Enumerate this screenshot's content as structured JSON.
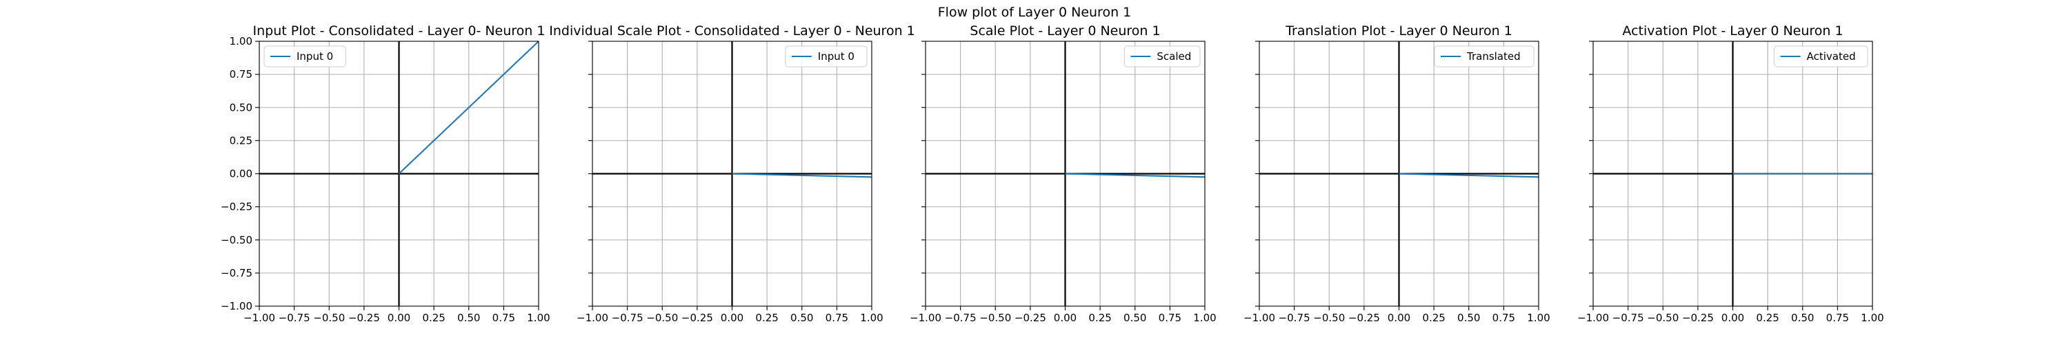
{
  "figure": {
    "title": "Flow plot of Layer 0 Neuron 1"
  },
  "chart_data": [
    {
      "type": "line",
      "title": "Input Plot - Consolidated - Layer 0- Neuron 1",
      "xlim": [
        -1.0,
        1.0
      ],
      "ylim": [
        -1.0,
        1.0
      ],
      "xticks": [
        "−1.00",
        "−0.75",
        "−0.50",
        "−0.25",
        "0.00",
        "0.25",
        "0.50",
        "0.75",
        "1.00"
      ],
      "yticks": [
        "−1.00",
        "−0.75",
        "−0.50",
        "−0.25",
        "0.00",
        "0.25",
        "0.50",
        "0.75",
        "1.00"
      ],
      "show_yticklabels": true,
      "grid": true,
      "legend_position": "upper-left",
      "series": [
        {
          "name": "Input 0",
          "color": "#1f77b4",
          "x": [
            0.0,
            1.0
          ],
          "y": [
            0.0,
            1.0
          ]
        }
      ]
    },
    {
      "type": "line",
      "title": "Individual Scale Plot - Consolidated - Layer 0 - Neuron 1",
      "xlim": [
        -1.0,
        1.0
      ],
      "ylim": [
        -1.0,
        1.0
      ],
      "xticks": [
        "−1.00",
        "−0.75",
        "−0.50",
        "−0.25",
        "0.00",
        "0.25",
        "0.50",
        "0.75",
        "1.00"
      ],
      "show_yticklabels": false,
      "grid": true,
      "legend_position": "upper-right",
      "series": [
        {
          "name": "Input 0",
          "color": "#1f77b4",
          "x": [
            0.0,
            1.0
          ],
          "y": [
            0.0,
            -0.025
          ]
        }
      ]
    },
    {
      "type": "line",
      "title": "Scale Plot - Layer 0 Neuron 1",
      "xlim": [
        -1.0,
        1.0
      ],
      "ylim": [
        -1.0,
        1.0
      ],
      "xticks": [
        "−1.00",
        "−0.75",
        "−0.50",
        "−0.25",
        "0.00",
        "0.25",
        "0.50",
        "0.75",
        "1.00"
      ],
      "show_yticklabels": false,
      "grid": true,
      "legend_position": "upper-right",
      "series": [
        {
          "name": "Scaled",
          "color": "#1f77b4",
          "x": [
            0.0,
            1.0
          ],
          "y": [
            0.0,
            -0.025
          ]
        }
      ]
    },
    {
      "type": "line",
      "title": "Translation Plot - Layer 0 Neuron 1",
      "xlim": [
        -1.0,
        1.0
      ],
      "ylim": [
        -1.0,
        1.0
      ],
      "xticks": [
        "−1.00",
        "−0.75",
        "−0.50",
        "−0.25",
        "0.00",
        "0.25",
        "0.50",
        "0.75",
        "1.00"
      ],
      "show_yticklabels": false,
      "grid": true,
      "legend_position": "upper-right",
      "series": [
        {
          "name": "Translated",
          "color": "#1f77b4",
          "x": [
            0.0,
            1.0
          ],
          "y": [
            0.0,
            -0.025
          ]
        }
      ]
    },
    {
      "type": "line",
      "title": "Activation Plot - Layer 0 Neuron 1",
      "xlim": [
        -1.0,
        1.0
      ],
      "ylim": [
        -1.0,
        1.0
      ],
      "xticks": [
        "−1.00",
        "−0.75",
        "−0.50",
        "−0.25",
        "0.00",
        "0.25",
        "0.50",
        "0.75",
        "1.00"
      ],
      "show_yticklabels": false,
      "grid": true,
      "legend_position": "upper-right",
      "series": [
        {
          "name": "Activated",
          "color": "#1f77b4",
          "x": [
            0.0,
            1.0
          ],
          "y": [
            0.0,
            0.0
          ]
        }
      ]
    }
  ]
}
